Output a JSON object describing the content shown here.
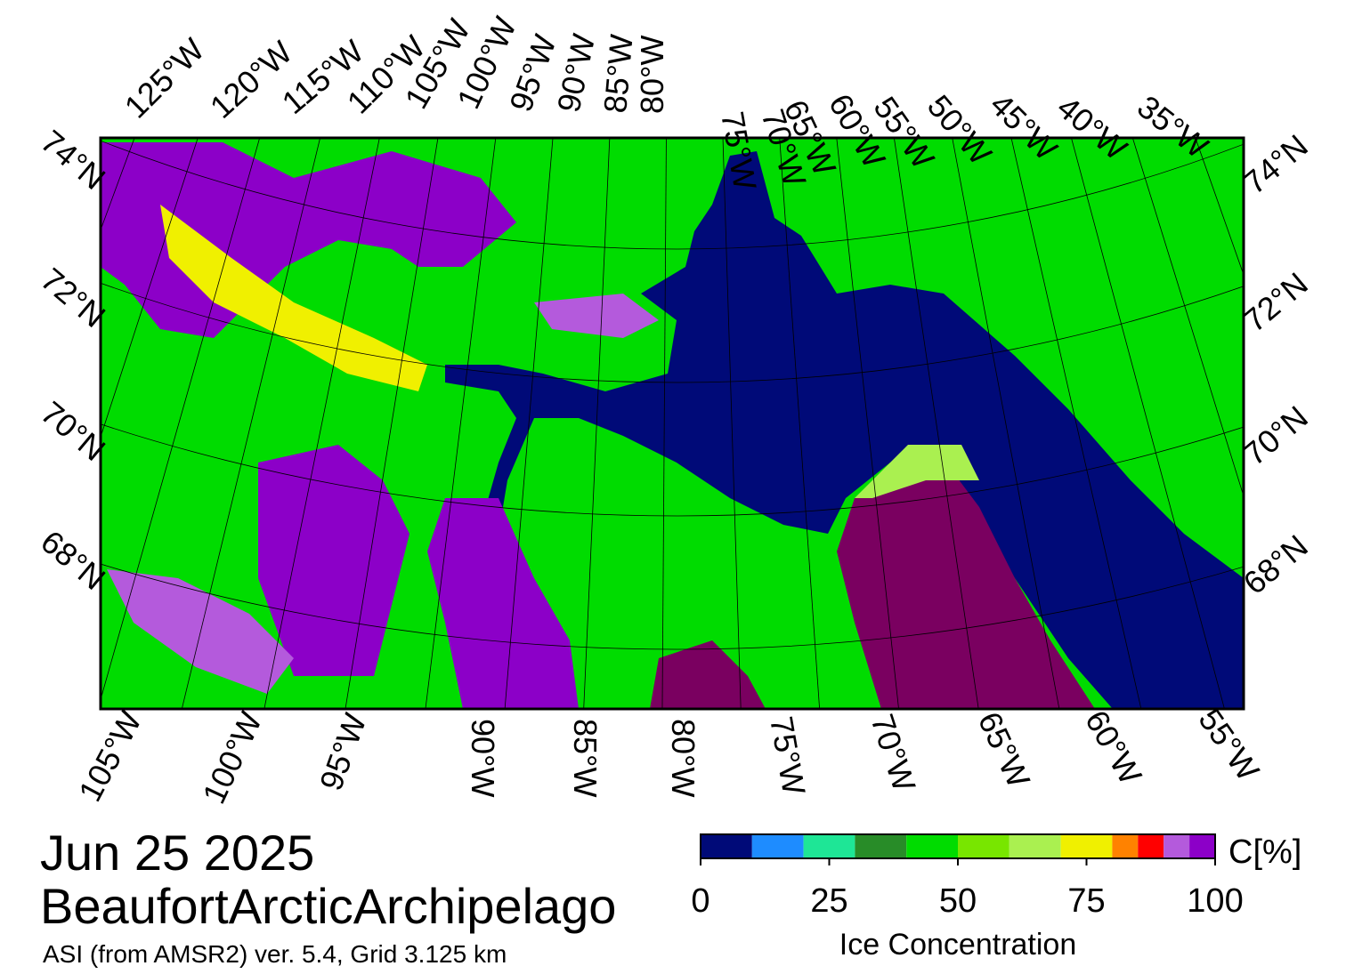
{
  "map": {
    "top_lon_labels": [
      "125°W",
      "120°W",
      "115°W",
      "110°W",
      "105°W",
      "100°W",
      "95°W",
      "90°W",
      "85°W",
      "80°W",
      "75°W",
      "70°W",
      "65°W",
      "60°W",
      "55°W",
      "50°W",
      "45°W",
      "40°W",
      "35°W"
    ],
    "bottom_lon_labels": [
      "105°W",
      "100°W",
      "95°W",
      "90°W",
      "85°W",
      "80°W",
      "75°W",
      "70°W",
      "65°W",
      "60°W",
      "55°W"
    ],
    "left_lat_labels": [
      "74°N",
      "72°N",
      "70°N",
      "68°N"
    ],
    "right_lat_labels": [
      "74°N",
      "72°N",
      "70°N",
      "68°N"
    ]
  },
  "caption": {
    "date": "Jun 25 2025",
    "region": "BeaufortArcticArchipelago",
    "source": "ASI (from AMSR2) ver. 5.4,  Grid 3.125 km"
  },
  "colorbar": {
    "unit": "C[%]",
    "title": "Ice Concentration",
    "range": [
      0,
      100
    ],
    "ticks": [
      0,
      25,
      50,
      75,
      100
    ],
    "bounds": [
      0,
      10,
      20,
      30,
      40,
      50,
      60,
      70,
      80,
      85,
      90,
      95,
      100
    ],
    "colors": [
      "#000a78",
      "#1e8cff",
      "#1ee696",
      "#288c28",
      "#00dc00",
      "#78e600",
      "#aaf050",
      "#f0f000",
      "#ff8200",
      "#ff0000",
      "#b45adc",
      "#8c00c8"
    ]
  }
}
